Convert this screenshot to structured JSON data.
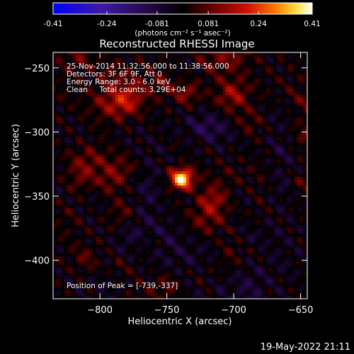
{
  "colorbar": {
    "ticks": [
      -0.41,
      -0.24,
      -0.081,
      0.081,
      0.24,
      0.41
    ],
    "tick_labels": [
      "-0.41",
      "-0.24",
      "-0.081",
      "0.081",
      "0.24",
      "0.41"
    ],
    "unit_label": "(photons cm⁻² s⁻¹ asec⁻²)",
    "range": [
      -0.41,
      0.41
    ],
    "colormap": "blue-purple-black-red-orange-yellow-white"
  },
  "chart_data": {
    "type": "heatmap",
    "title": "Reconstructed RHESSI Image",
    "xlabel": "Heliocentric X (arcsec)",
    "ylabel": "Heliocentric Y (arcsec)",
    "xlim": [
      -835,
      -645
    ],
    "ylim": [
      -430,
      -238
    ],
    "xticks": [
      -800,
      -750,
      -700,
      -650
    ],
    "xtick_labels": [
      "−800",
      "−750",
      "−700",
      "−650"
    ],
    "yticks": [
      -250,
      -300,
      -350,
      -400
    ],
    "ytick_labels": [
      "−250",
      "−300",
      "−350",
      "−400"
    ],
    "peak_position": [
      -739,
      -337
    ],
    "peak_value": 0.41,
    "min_value": -0.41,
    "source_fwhm_arcsec": 10,
    "annotations": [
      "25-Nov-2014 11:32:56.000 to 11:38:56.000",
      "Detectors: 3F 6F 9F, Att 0",
      "Energy Range: 3.0 - 6.0 keV",
      "Clean     Total counts: 3.29E+04"
    ],
    "peak_label": "Position of Peak = [-739,-337]"
  },
  "footer": {
    "timestamp": "19-May-2022 21:11"
  }
}
